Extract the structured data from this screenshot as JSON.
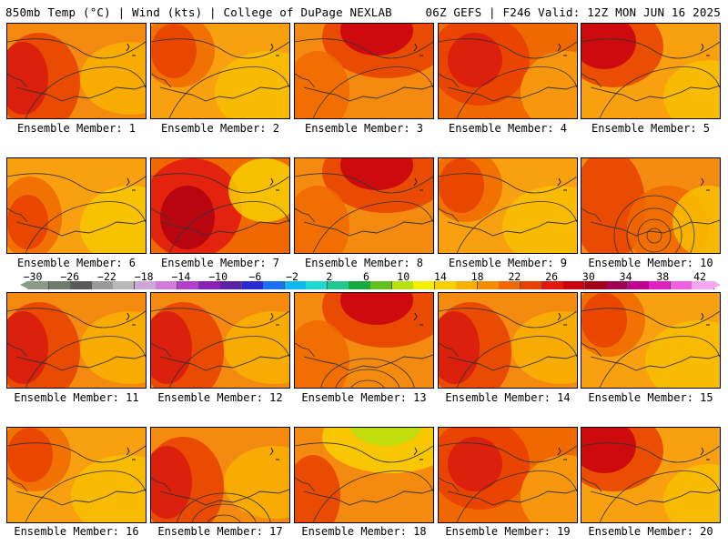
{
  "header": {
    "left": "850mb Temp (°C) | Wind (kts) | College of DuPage NEXLAB",
    "right": "06Z GEFS | F246 Valid: 12Z MON JUN 16 2025"
  },
  "colorbar": {
    "ticks": [
      "-30",
      "-26",
      "-22",
      "-18",
      "-14",
      "-10",
      "-6",
      "-2",
      "2",
      "6",
      "10",
      "14",
      "18",
      "22",
      "26",
      "30",
      "34",
      "38",
      "42"
    ],
    "colors": [
      "#8a9a88",
      "#6f7a6c",
      "#5a5a5a",
      "#9a9a9a",
      "#b8b8b8",
      "#c9a8d8",
      "#d27ad8",
      "#b040c8",
      "#8a20b8",
      "#5a20a8",
      "#2a2ad0",
      "#1a70f0",
      "#10b8f0",
      "#20d8d0",
      "#20c890",
      "#18a840",
      "#60c020",
      "#b8e010",
      "#f0f000",
      "#f8d000",
      "#f8b000",
      "#f88c00",
      "#f06800",
      "#e84000",
      "#e01810",
      "#c80010",
      "#a00018",
      "#a00050",
      "#c00090",
      "#e020c0",
      "#f060e0",
      "#f8a8f0"
    ]
  },
  "panels": [
    {
      "label": "Ensemble Member: 1",
      "scheme": "hot-west"
    },
    {
      "label": "Ensemble Member: 2",
      "scheme": "mild"
    },
    {
      "label": "Ensemble Member: 3",
      "scheme": "hot-north"
    },
    {
      "label": "Ensemble Member: 4",
      "scheme": "hot-broad"
    },
    {
      "label": "Ensemble Member: 5",
      "scheme": "hot-nw"
    },
    {
      "label": "Ensemble Member: 6",
      "scheme": "cool"
    },
    {
      "label": "Ensemble Member: 7",
      "scheme": "hot-center"
    },
    {
      "label": "Ensemble Member: 8",
      "scheme": "hot-north"
    },
    {
      "label": "Ensemble Member: 9",
      "scheme": "mild"
    },
    {
      "label": "Ensemble Member: 10",
      "scheme": "cyclone"
    },
    {
      "label": "Ensemble Member: 11",
      "scheme": "hot-west"
    },
    {
      "label": "Ensemble Member: 12",
      "scheme": "hot-west"
    },
    {
      "label": "Ensemble Member: 13",
      "scheme": "hot-north"
    },
    {
      "label": "Ensemble Member: 14",
      "scheme": "hot-west"
    },
    {
      "label": "Ensemble Member: 15",
      "scheme": "mild"
    },
    {
      "label": "Ensemble Member: 16",
      "scheme": "mild"
    },
    {
      "label": "Ensemble Member: 17",
      "scheme": "hot-west"
    },
    {
      "label": "Ensemble Member: 18",
      "scheme": "cool-north"
    },
    {
      "label": "Ensemble Member: 19",
      "scheme": "hot-broad"
    },
    {
      "label": "Ensemble Member: 20",
      "scheme": "hot-nw"
    }
  ]
}
